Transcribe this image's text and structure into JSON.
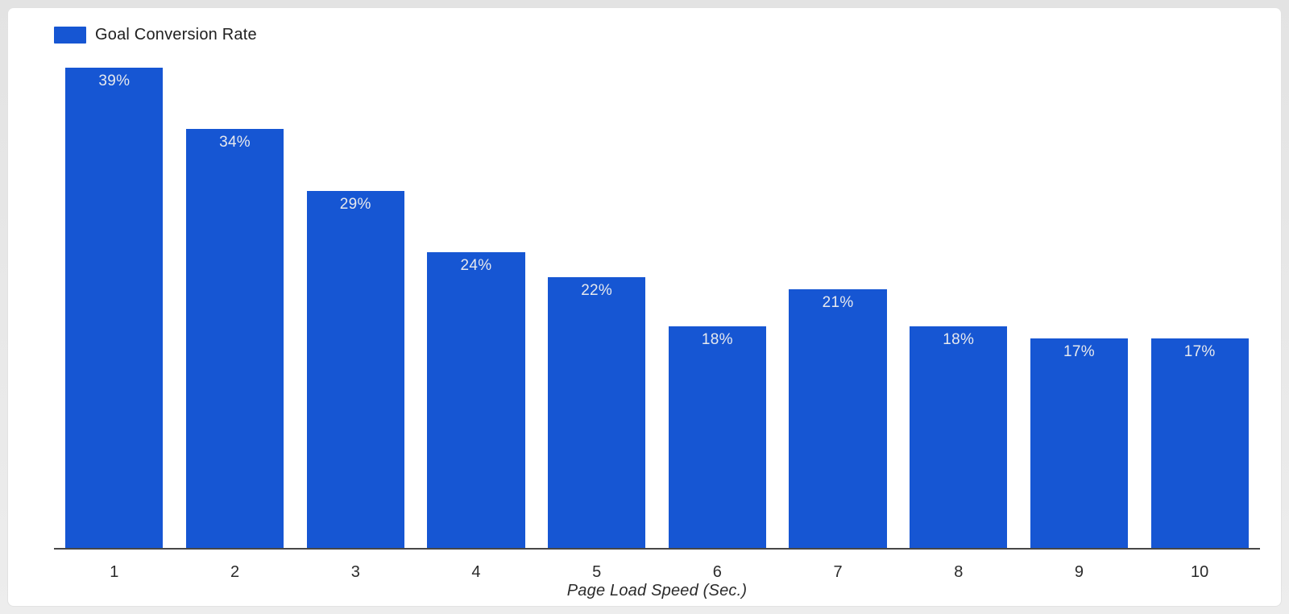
{
  "chart_data": {
    "type": "bar",
    "title": "",
    "categories": [
      "1",
      "2",
      "3",
      "4",
      "5",
      "6",
      "7",
      "8",
      "9",
      "10"
    ],
    "series": [
      {
        "name": "Goal Conversion Rate",
        "values": [
          39,
          34,
          29,
          24,
          22,
          18,
          21,
          18,
          17,
          17
        ],
        "labels": [
          "39%",
          "34%",
          "29%",
          "24%",
          "22%",
          "18%",
          "21%",
          "18%",
          "17%",
          "17%"
        ]
      }
    ],
    "xlabel": "Page Load Speed (Sec.)",
    "ylabel": "",
    "ylim": [
      0,
      39
    ],
    "grid": false,
    "legend_position": "top-left",
    "colors": {
      "bar": "#1656D3",
      "bar_label": "#E7E9EE",
      "axis_line": "#474747",
      "tick_label": "#2B2B2B",
      "legend_text": "#212121",
      "card_background": "#FFFFFF",
      "page_background": "#E8E8E8"
    }
  }
}
